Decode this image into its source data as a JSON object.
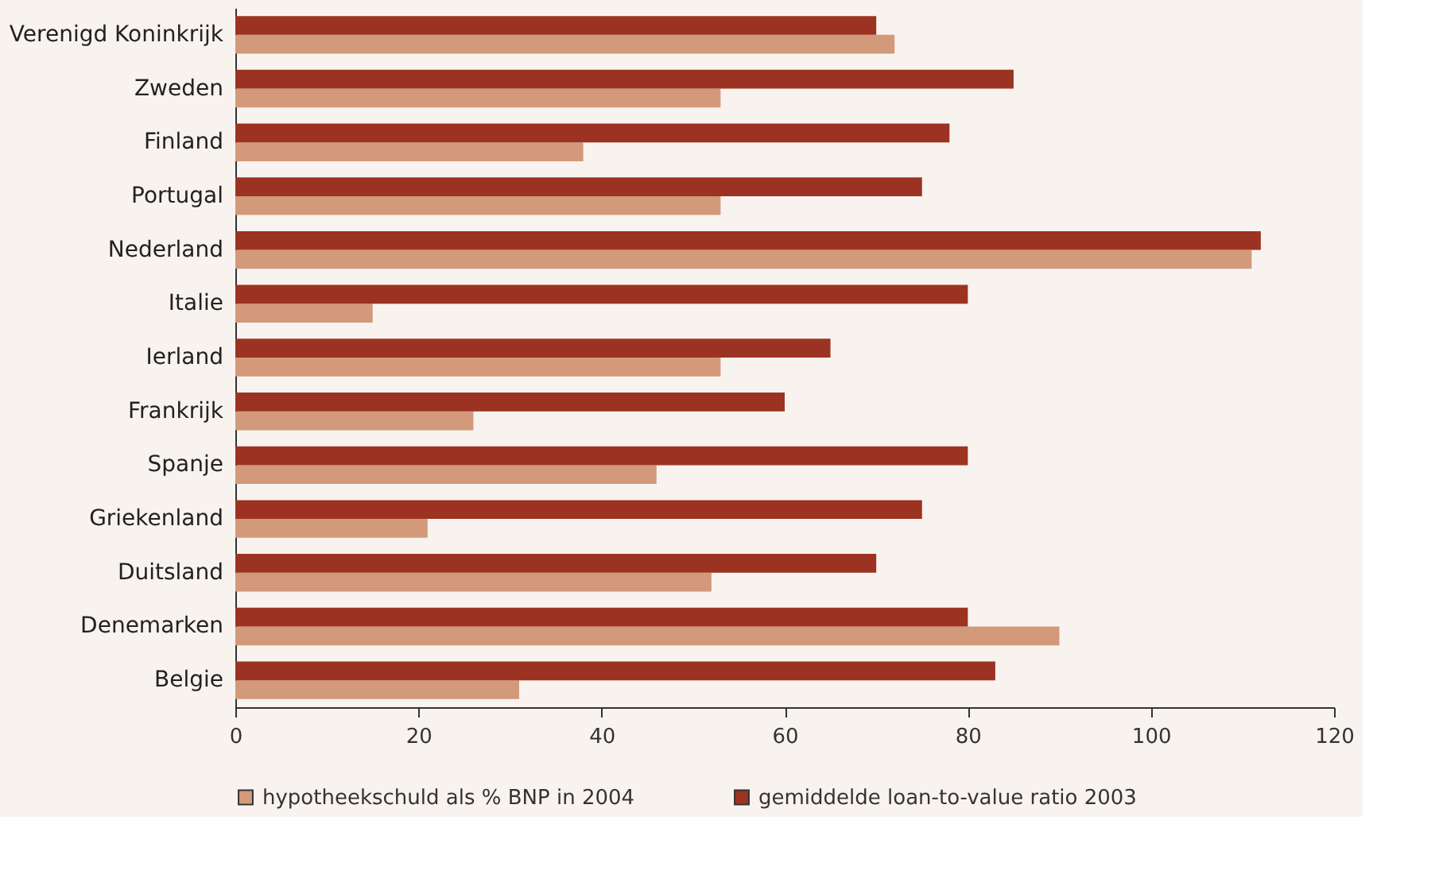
{
  "chart_data": {
    "type": "bar",
    "orientation": "horizontal",
    "legend": "bottom",
    "grid": false,
    "categories": [
      "Verenigd Koninkrijk",
      "Zweden",
      "Finland",
      "Portugal",
      "Nederland",
      "Italie",
      "Ierland",
      "Frankrijk",
      "Spanje",
      "Griekenland",
      "Duitsland",
      "Denemarken",
      "Belgie"
    ],
    "series": [
      {
        "name": "hypotheekschuld als % BNP in 2004",
        "color": "#d29a7a",
        "values": [
          72,
          53,
          38,
          53,
          111,
          15,
          53,
          26,
          46,
          21,
          52,
          90,
          31
        ]
      },
      {
        "name": "gemiddelde loan-to-value ratio 2003",
        "color": "#9c3322",
        "values": [
          70,
          85,
          78,
          75,
          112,
          80,
          65,
          60,
          80,
          75,
          70,
          80,
          83
        ]
      }
    ],
    "xlim": [
      0,
      120
    ],
    "xticks": [
      0,
      20,
      40,
      60,
      80,
      100,
      120
    ]
  }
}
